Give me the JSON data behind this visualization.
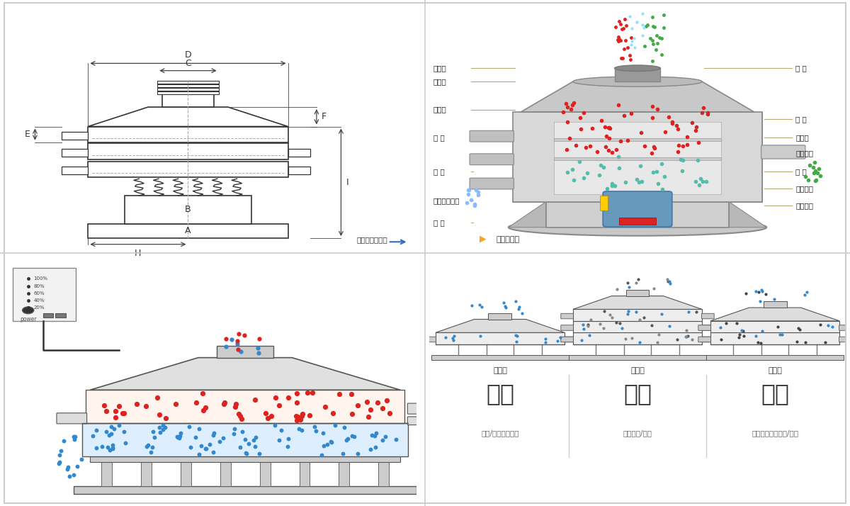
{
  "bg_color": "#ffffff",
  "border_color": "#cccccc",
  "line_color": "#333333",
  "dim_line_color": "#444444",
  "connector_color": "#b8a878",
  "red_dot_color": "#dd2222",
  "blue_dot_color": "#3388cc",
  "green_dot_color": "#44aa44",
  "cyan_dot_color": "#44bbcc",
  "tr_left_labels": [
    "进料口",
    "防尘盖",
    "出料口",
    "束 环",
    "弹 簧",
    "运输固定螺栓",
    "机 座"
  ],
  "tr_right_labels": [
    "筛 网",
    "网 架",
    "加重块",
    "上部重锤",
    "筛 盘",
    "振动电机",
    "下部重锤"
  ],
  "bottom_section_labels": [
    "单层式",
    "三层式",
    "双层式"
  ],
  "bottom_titles": [
    "分级",
    "过滤",
    "除杂"
  ],
  "bottom_subs": [
    "颗粒/粉末准确分级",
    "去除异物/结块",
    "去除液体中的颗粒/异物"
  ],
  "panel_text_lines": [
    "100%",
    "80%",
    "60%",
    "40%",
    "20%"
  ],
  "panel_label": "power"
}
